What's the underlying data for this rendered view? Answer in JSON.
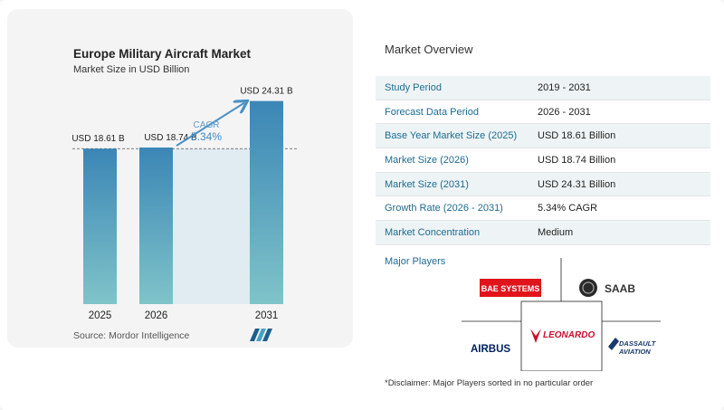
{
  "chart_data": {
    "type": "bar",
    "title": "Europe Military Aircraft Market",
    "subtitle": "Market Size in USD Billion",
    "categories": [
      "2025",
      "2026",
      "2031"
    ],
    "values": [
      18.61,
      18.74,
      24.31
    ],
    "data_labels": [
      "USD 18.61 B",
      "USD 18.74 B",
      "USD 24.31 B"
    ],
    "annotation": {
      "label": "CAGR",
      "value": "5.34%"
    },
    "ylim": [
      0,
      26
    ],
    "colors": {
      "bar_top": "#3b86b6",
      "bar_bottom": "#7fc4c9",
      "band": "#e0ebf2",
      "arrow": "#4b90c4"
    }
  },
  "source": "Source:  Mordor Intelligence",
  "overview": {
    "title": "Market Overview",
    "rows": [
      {
        "label": "Study Period",
        "value": "2019 - 2031"
      },
      {
        "label": "Forecast Data Period",
        "value": "2026 - 2031"
      },
      {
        "label": "Base Year Market Size (2025)",
        "value": "USD 18.61 Billion"
      },
      {
        "label": "Market Size (2026)",
        "value": "USD 18.74 Billion"
      },
      {
        "label": "Market Size (2031)",
        "value": "USD 24.31 Billion"
      },
      {
        "label": "Growth Rate (2026 - 2031)",
        "value": "5.34% CAGR"
      },
      {
        "label": "Market Concentration",
        "value": "Medium"
      }
    ]
  },
  "players": {
    "title": "Major Players",
    "names": [
      "BAE SYSTEMS",
      "SAAB",
      "AIRBUS",
      "LEONARDO",
      "DASSAULT",
      "AVIATION"
    ]
  },
  "disclaimer": "*Disclaimer: Major Players sorted in no particular order"
}
